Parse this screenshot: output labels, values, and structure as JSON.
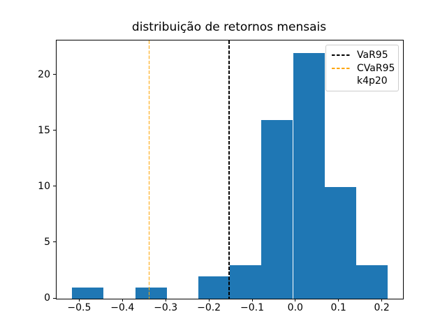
{
  "title": "distribuição de retornos mensais",
  "chart_data": {
    "type": "bar",
    "subtype": "histogram",
    "title": "distribuição de retornos mensais",
    "xlabel": "",
    "ylabel": "",
    "bin_edges": [
      -0.518,
      -0.445,
      -0.372,
      -0.299,
      -0.226,
      -0.153,
      -0.08,
      -0.007,
      0.066,
      0.139,
      0.212
    ],
    "counts": [
      1,
      0,
      1,
      0,
      2,
      3,
      16,
      22,
      10,
      3
    ],
    "bar_color": "#1f77b4",
    "xlim": [
      -0.554,
      0.2475
    ],
    "ylim": [
      0,
      23.1
    ],
    "x_ticks": [
      -0.5,
      -0.4,
      -0.3,
      -0.2,
      -0.1,
      0.0,
      0.1,
      0.2
    ],
    "x_tick_labels": [
      "−0.5",
      "−0.4",
      "−0.3",
      "−0.2",
      "−0.1",
      "0.0",
      "0.1",
      "0.2"
    ],
    "y_ticks": [
      0,
      5,
      10,
      15,
      20
    ],
    "y_tick_labels": [
      "0",
      "5",
      "10",
      "15",
      "20"
    ],
    "grid": false,
    "vlines": [
      {
        "name": "VaR95",
        "x": -0.155,
        "color": "#000000",
        "style": "dashed"
      },
      {
        "name": "CVaR95",
        "x": -0.34,
        "color": "#ffa500",
        "style": "dashed"
      }
    ],
    "legend": {
      "position": "upper right",
      "entries": [
        {
          "label": "VaR95",
          "color": "#000000",
          "dash": true
        },
        {
          "label": "CVaR95",
          "color": "#ffa500",
          "dash": true
        },
        {
          "label": "k4p20",
          "color": null,
          "dash": false
        }
      ]
    }
  }
}
